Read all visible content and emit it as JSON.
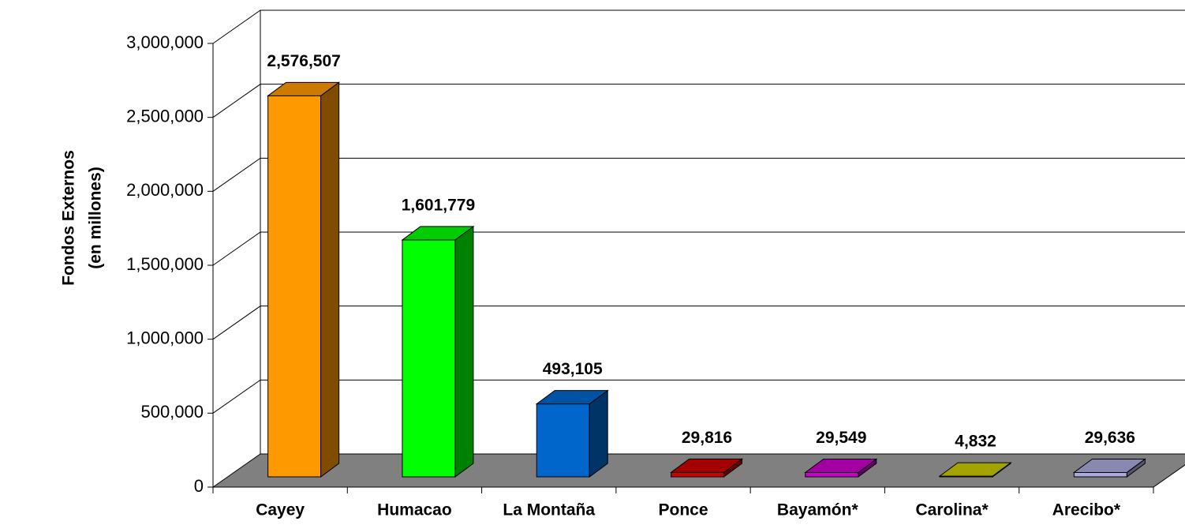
{
  "chart_data": {
    "type": "bar3d",
    "y_label": [
      "Fondos Externos",
      "(en millones)"
    ],
    "categories": [
      "Cayey",
      "Humacao",
      "La Montaña",
      "Ponce",
      "Bayamón*",
      "Carolina*",
      "Arecibo*"
    ],
    "values": [
      2576507,
      1601779,
      493105,
      29816,
      29549,
      4832,
      29636
    ],
    "value_labels": [
      "2,576,507",
      "1,601,779",
      "493,105",
      "29,816",
      "29,549",
      "4,832",
      "29,636"
    ],
    "colors": [
      "#ff9900",
      "#00ff00",
      "#0066cc",
      "#cc0000",
      "#cc00cc",
      "#cccc00",
      "#aaaadd"
    ],
    "ylim": [
      0,
      3000000
    ],
    "yticks": [
      {
        "value": 0,
        "label": "0"
      },
      {
        "value": 500000,
        "label": "500,000"
      },
      {
        "value": 1000000,
        "label": "1,000,000"
      },
      {
        "value": 1500000,
        "label": "1,500,000"
      },
      {
        "value": 2000000,
        "label": "2,000,000"
      },
      {
        "value": 2500000,
        "label": "2,500,000"
      },
      {
        "value": 3000000,
        "label": "3,000,000"
      }
    ],
    "grid": true
  }
}
